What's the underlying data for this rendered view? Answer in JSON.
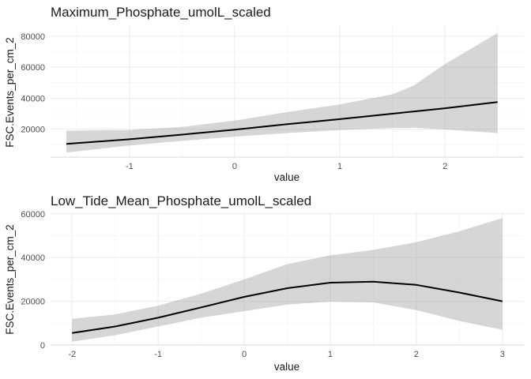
{
  "chart_data": [
    {
      "type": "line",
      "title": "Maximum_Phosphate_umolL_scaled",
      "xlabel": "value",
      "ylabel": "FSC.Events_per_cm_2",
      "xlim": [
        -1.75,
        2.75
      ],
      "ylim": [
        2000,
        87000
      ],
      "xticks": [
        -1,
        0,
        1,
        2
      ],
      "yticks": [
        20000,
        40000,
        60000,
        80000
      ],
      "grid": true,
      "x": [
        -1.6,
        -1.0,
        -0.5,
        0.0,
        0.5,
        1.0,
        1.5,
        1.7,
        2.0,
        2.5
      ],
      "y": [
        10500,
        13500,
        16500,
        19700,
        23200,
        26500,
        30000,
        31400,
        33500,
        37500
      ],
      "lower": [
        5000,
        9500,
        12500,
        15200,
        17500,
        19500,
        20700,
        21000,
        19800,
        17500
      ],
      "upper": [
        19000,
        19500,
        21500,
        25500,
        31000,
        36000,
        42500,
        48000,
        62000,
        82000
      ]
    },
    {
      "type": "line",
      "title": "Low_Tide_Mean_Phosphate_umolL_scaled",
      "xlabel": "value",
      "ylabel": "FSC.Events_per_cm_2",
      "xlim": [
        -2.25,
        3.25
      ],
      "ylim": [
        0,
        61000
      ],
      "xticks": [
        -2,
        -1,
        0,
        1,
        2,
        3
      ],
      "yticks": [
        0,
        20000,
        40000,
        60000
      ],
      "grid": true,
      "x": [
        -2.0,
        -1.5,
        -1.0,
        -0.5,
        0.0,
        0.5,
        1.0,
        1.5,
        2.0,
        2.5,
        3.0
      ],
      "y": [
        5500,
        8500,
        12500,
        17200,
        22000,
        26000,
        28500,
        29000,
        27500,
        24000,
        20000
      ],
      "lower": [
        1500,
        4500,
        8500,
        12500,
        15500,
        18500,
        19800,
        19500,
        16000,
        11000,
        7000
      ],
      "upper": [
        12000,
        14000,
        18000,
        23500,
        30000,
        37000,
        41000,
        43500,
        47000,
        52000,
        58000
      ]
    }
  ]
}
